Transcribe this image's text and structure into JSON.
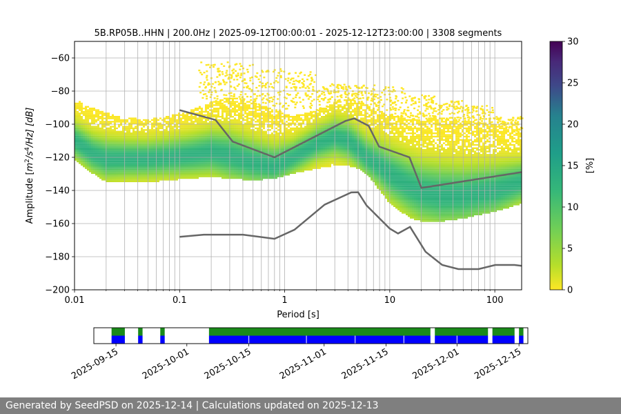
{
  "chart_data": [
    {
      "type": "heatmap",
      "title": "5B.RP05B..HHN | 200.0Hz | 2025-09-12T00:00:01 - 2025-12-12T23:00:00 | 3308 segments",
      "xlabel": "Period [s]",
      "ylabel_parts": [
        "Amplitude [",
        "m",
        "2",
        "/",
        "s",
        "4",
        "/Hz] [dB]"
      ],
      "x_scale": "log",
      "xlim": [
        0.01,
        180
      ],
      "ylim": [
        -200,
        -50
      ],
      "x_ticks": [
        0.01,
        0.1,
        1,
        10,
        100
      ],
      "x_tick_labels": [
        "0.01",
        "0.1",
        "1",
        "10",
        "100"
      ],
      "y_ticks": [
        -200,
        -180,
        -160,
        -140,
        -120,
        -100,
        -80,
        -60
      ],
      "y_tick_labels": [
        "−200",
        "−180",
        "−160",
        "−140",
        "−120",
        "−100",
        "−80",
        "−60"
      ],
      "grid": true,
      "colorbar": {
        "label": "[%]",
        "range": [
          0,
          30
        ],
        "ticks": [
          0,
          5,
          10,
          15,
          20,
          25,
          30
        ],
        "tick_labels": [
          "0",
          "5",
          "10",
          "15",
          "20",
          "25",
          "30"
        ],
        "colormap": "viridis_r"
      },
      "psd_band": {
        "period": [
          0.01,
          0.015,
          0.02,
          0.03,
          0.05,
          0.08,
          0.12,
          0.2,
          0.3,
          0.5,
          0.8,
          1.2,
          2,
          3,
          4,
          5,
          6,
          8,
          10,
          15,
          20,
          30,
          50,
          100,
          180
        ],
        "upper": [
          -85,
          -90,
          -93,
          -96,
          -97,
          -95,
          -92,
          -87,
          -83,
          -87,
          -91,
          -95,
          -92,
          -87,
          -85,
          -86,
          -88,
          -92,
          -94,
          -97,
          -97,
          -96,
          -98,
          -100,
          -105
        ],
        "mode": [
          -110,
          -118,
          -121,
          -121,
          -121,
          -120,
          -119,
          -117,
          -119,
          -123,
          -125,
          -120,
          -112,
          -108,
          -110,
          -115,
          -120,
          -125,
          -130,
          -137,
          -141,
          -143,
          -143,
          -140,
          -135
        ],
        "lower": [
          -122,
          -130,
          -135,
          -135,
          -135,
          -134,
          -133,
          -132,
          -133,
          -134,
          -133,
          -130,
          -127,
          -125,
          -125,
          -127,
          -130,
          -140,
          -148,
          -156,
          -159,
          -159,
          -157,
          -153,
          -148
        ],
        "sparse_upper": [
          -62,
          -63,
          -66,
          -68,
          -75,
          -76,
          -77,
          -82,
          -85,
          -88,
          -95
        ]
      },
      "model_high": {
        "period": [
          0.1,
          0.22,
          0.32,
          0.8,
          3.8,
          4.6,
          6.3,
          7.9,
          15.4,
          20,
          354.8
        ],
        "db": [
          -91.5,
          -97.4,
          -110.5,
          -120,
          -98,
          -96.5,
          -101,
          -113.5,
          -120,
          -138.5,
          -126
        ]
      },
      "model_low": {
        "period": [
          0.1,
          0.17,
          0.4,
          0.8,
          1.24,
          2.4,
          4.3,
          5,
          6,
          10,
          12,
          15.6,
          21.9,
          31.6,
          45,
          70,
          101,
          154,
          180
        ],
        "db": [
          -168,
          -166.7,
          -166.7,
          -169.2,
          -163.7,
          -148.6,
          -141.2,
          -141.1,
          -149,
          -163,
          -166,
          -162,
          -177,
          -185,
          -187.5,
          -187.5,
          -185,
          -185,
          -185.5
        ]
      }
    },
    {
      "type": "timeline",
      "x_ticks": [
        "2025-09-15",
        "2025-10-01",
        "2025-10-15",
        "2025-11-01",
        "2025-11-15",
        "2025-12-01",
        "2025-12-15"
      ],
      "x_range": [
        "2025-09-10",
        "2025-12-17"
      ],
      "coverage_segments": [
        {
          "start": "2025-09-14",
          "end": "2025-09-17"
        },
        {
          "start": "2025-09-20",
          "end": "2025-09-21"
        },
        {
          "start": "2025-09-25",
          "end": "2025-09-26"
        },
        {
          "start": "2025-10-06",
          "end": "2025-11-25"
        },
        {
          "start": "2025-11-26",
          "end": "2025-12-08"
        },
        {
          "start": "2025-12-09",
          "end": "2025-12-14"
        },
        {
          "start": "2025-12-15",
          "end": "2025-12-16"
        }
      ],
      "gap_markers": [
        "2025-10-15",
        "2025-10-28",
        "2025-11-08",
        "2025-11-19",
        "2025-12-01"
      ],
      "colors": {
        "top_band": "#1a8a1a",
        "bottom_band": "#0000ff"
      }
    }
  ],
  "footer": {
    "text": "Generated by SeedPSD on 2025-12-14 | Calculations updated on 2025-12-13"
  }
}
